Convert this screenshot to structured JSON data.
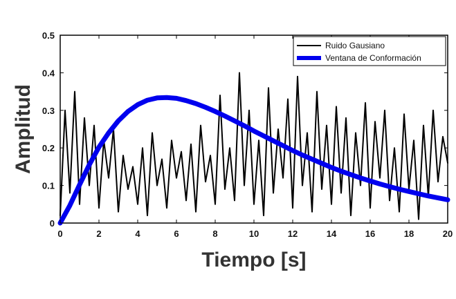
{
  "chart_data": {
    "type": "line",
    "title": "",
    "xlabel": "Tiempo [s]",
    "ylabel": "Amplitud",
    "xlim": [
      0,
      20
    ],
    "ylim": [
      0,
      0.5
    ],
    "xticks": [
      0,
      2,
      4,
      6,
      8,
      10,
      12,
      14,
      16,
      18,
      20
    ],
    "xtick_labels": [
      "0",
      "2",
      "4",
      "6",
      "8",
      "10",
      "12",
      "14",
      "16",
      "18",
      "20"
    ],
    "yticks": [
      0,
      0.1,
      0.2,
      0.3,
      0.4,
      0.5
    ],
    "ytick_labels": [
      "0",
      "0.1",
      "0.2",
      "0.3",
      "0.4",
      "0.5"
    ],
    "grid": false,
    "legend_position": "top-right",
    "series": [
      {
        "name": "Ruido Gausiano",
        "color": "#000000",
        "x": [
          0,
          0.25,
          0.5,
          0.75,
          1,
          1.25,
          1.5,
          1.75,
          2,
          2.25,
          2.5,
          2.75,
          3,
          3.25,
          3.5,
          3.75,
          4,
          4.25,
          4.5,
          4.75,
          5,
          5.25,
          5.5,
          5.75,
          6,
          6.25,
          6.5,
          6.75,
          7,
          7.25,
          7.5,
          7.75,
          8,
          8.25,
          8.5,
          8.75,
          9,
          9.25,
          9.5,
          9.75,
          10,
          10.25,
          10.5,
          10.75,
          11,
          11.25,
          11.5,
          11.75,
          12,
          12.25,
          12.5,
          12.75,
          13,
          13.25,
          13.5,
          13.75,
          14,
          14.25,
          14.5,
          14.75,
          15,
          15.25,
          15.5,
          15.75,
          16,
          16.25,
          16.5,
          16.75,
          17,
          17.25,
          17.5,
          17.75,
          18,
          18.25,
          18.5,
          18.75,
          19,
          19.25,
          19.5,
          19.75,
          20
        ],
        "y": [
          0.02,
          0.3,
          0.08,
          0.35,
          0.05,
          0.28,
          0.1,
          0.26,
          0.04,
          0.22,
          0.12,
          0.25,
          0.03,
          0.18,
          0.09,
          0.15,
          0.05,
          0.2,
          0.02,
          0.24,
          0.1,
          0.17,
          0.04,
          0.22,
          0.12,
          0.19,
          0.06,
          0.21,
          0.03,
          0.26,
          0.11,
          0.18,
          0.05,
          0.34,
          0.09,
          0.2,
          0.06,
          0.4,
          0.1,
          0.3,
          0.05,
          0.22,
          0.02,
          0.36,
          0.08,
          0.25,
          0.12,
          0.33,
          0.04,
          0.39,
          0.1,
          0.24,
          0.03,
          0.35,
          0.09,
          0.26,
          0.05,
          0.31,
          0.08,
          0.28,
          0.02,
          0.24,
          0.1,
          0.32,
          0.04,
          0.27,
          0.12,
          0.3,
          0.06,
          0.2,
          0.03,
          0.29,
          0.09,
          0.22,
          0.01,
          0.26,
          0.07,
          0.3,
          0.11,
          0.23,
          0.16
        ]
      },
      {
        "name": "Ventana de Conformación",
        "color": "#0000ee",
        "x": [
          0,
          0.5,
          1,
          1.5,
          2,
          2.5,
          3,
          3.5,
          4,
          4.5,
          5,
          5.5,
          6,
          6.5,
          7,
          7.5,
          8,
          8.5,
          9,
          9.5,
          10,
          10.5,
          11,
          11.5,
          12,
          12.5,
          13,
          13.5,
          14,
          14.5,
          15,
          15.5,
          16,
          16.5,
          17,
          17.5,
          18,
          18.5,
          19,
          19.5,
          20
        ],
        "y": [
          0,
          0.047,
          0.102,
          0.155,
          0.202,
          0.24,
          0.272,
          0.297,
          0.315,
          0.327,
          0.333,
          0.334,
          0.332,
          0.326,
          0.318,
          0.308,
          0.297,
          0.285,
          0.272,
          0.259,
          0.245,
          0.232,
          0.219,
          0.206,
          0.193,
          0.181,
          0.17,
          0.159,
          0.148,
          0.138,
          0.129,
          0.12,
          0.112,
          0.104,
          0.097,
          0.09,
          0.084,
          0.078,
          0.072,
          0.067,
          0.062
        ]
      }
    ]
  }
}
